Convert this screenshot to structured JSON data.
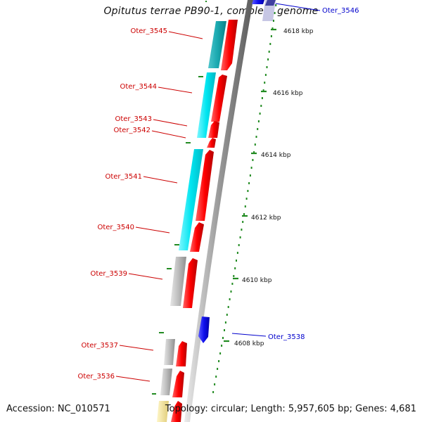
{
  "title": "Opitutus terrae PB90-1, complete genome",
  "footer": {
    "accession": "Accession: NC_010571",
    "summary": "Topology: circular; Length: 5,957,605 bp; Genes: 4,681"
  },
  "colors": {
    "red_gene": "#ff0000",
    "cyan_feature": "#00e5f0",
    "grey_feature": "#b8b8b8",
    "blue_feature": "#0000ee",
    "yellow_feature": "#f1e4a0",
    "tick_green": "#228b22",
    "red_label": "#cc0000",
    "blue_label": "#0000cc"
  },
  "ruler": {
    "labels": [
      "4618 kbp",
      "4616 kbp",
      "4614 kbp",
      "4612 kbp",
      "4610 kbp",
      "4608 kbp"
    ]
  },
  "genes_left": [
    {
      "label": "Oter_3545"
    },
    {
      "label": "Oter_3544"
    },
    {
      "label": "Oter_3543"
    },
    {
      "label": "Oter_3542"
    },
    {
      "label": "Oter_3541"
    },
    {
      "label": "Oter_3540"
    },
    {
      "label": "Oter_3539"
    },
    {
      "label": "Oter_3537"
    },
    {
      "label": "Oter_3536"
    }
  ],
  "genes_right": [
    {
      "label": "Oter_3546"
    },
    {
      "label": "Oter_3538"
    }
  ]
}
